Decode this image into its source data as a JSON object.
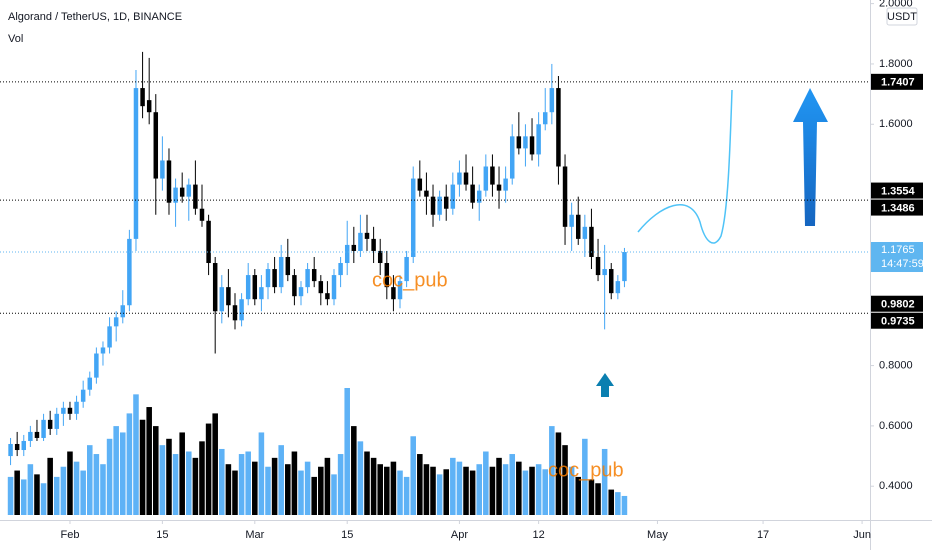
{
  "chart_data": {
    "type": "candlestick",
    "title": "Algorand / TetherUS, 1D, BINANCE",
    "volume_label": "Vol",
    "currency": "USDT",
    "watermark": "coc_pub",
    "open": [
      0.5,
      0.54,
      0.52,
      0.55,
      0.58,
      0.56,
      0.62,
      0.59,
      0.64,
      0.66,
      0.64,
      0.68,
      0.72,
      0.76,
      0.84,
      0.86,
      0.93,
      0.96,
      1.0,
      1.22,
      1.72,
      1.68,
      1.64,
      1.42,
      1.48,
      1.34,
      1.39,
      1.36,
      1.4,
      1.32,
      1.28,
      1.14,
      0.98,
      1.06,
      1.0,
      0.95,
      1.02,
      1.1,
      1.02,
      1.06,
      1.12,
      1.06,
      1.16,
      1.1,
      1.03,
      1.06,
      1.12,
      1.08,
      1.04,
      1.02,
      1.1,
      1.14,
      1.2,
      1.18,
      1.24,
      1.22,
      1.18,
      1.14,
      1.06,
      1.02,
      1.08,
      1.16,
      1.42,
      1.38,
      1.36,
      1.3,
      1.36,
      1.32,
      1.4,
      1.44,
      1.4,
      1.34,
      1.38,
      1.46,
      1.4,
      1.38,
      1.42,
      1.56,
      1.52,
      1.56,
      1.5,
      1.6,
      1.64,
      1.72,
      1.46,
      1.26,
      1.3,
      1.22,
      1.26,
      1.16,
      1.1,
      1.12,
      1.04,
      1.08
    ],
    "high": [
      0.56,
      0.58,
      0.57,
      0.6,
      0.62,
      0.64,
      0.65,
      0.66,
      0.68,
      0.68,
      0.7,
      0.75,
      0.78,
      0.86,
      0.88,
      0.96,
      0.98,
      1.05,
      1.25,
      1.78,
      1.84,
      1.82,
      1.7,
      1.56,
      1.52,
      1.42,
      1.44,
      1.42,
      1.48,
      1.4,
      1.3,
      1.16,
      1.1,
      1.12,
      1.04,
      1.04,
      1.14,
      1.12,
      1.1,
      1.14,
      1.16,
      1.2,
      1.22,
      1.12,
      1.08,
      1.14,
      1.16,
      1.1,
      1.08,
      1.12,
      1.16,
      1.28,
      1.26,
      1.3,
      1.3,
      1.26,
      1.22,
      1.18,
      1.1,
      1.1,
      1.18,
      1.46,
      1.48,
      1.44,
      1.4,
      1.38,
      1.4,
      1.44,
      1.48,
      1.5,
      1.46,
      1.4,
      1.5,
      1.5,
      1.46,
      1.46,
      1.6,
      1.64,
      1.6,
      1.62,
      1.64,
      1.72,
      1.8,
      1.76,
      1.5,
      1.34,
      1.36,
      1.3,
      1.32,
      1.22,
      1.2,
      1.14,
      1.1,
      1.19
    ],
    "low": [
      0.47,
      0.5,
      0.5,
      0.53,
      0.55,
      0.55,
      0.57,
      0.57,
      0.6,
      0.62,
      0.62,
      0.66,
      0.7,
      0.74,
      0.8,
      0.84,
      0.88,
      0.94,
      0.98,
      1.18,
      1.62,
      1.6,
      1.3,
      1.38,
      1.3,
      1.26,
      1.34,
      1.28,
      1.3,
      1.26,
      1.1,
      0.84,
      0.94,
      0.96,
      0.92,
      0.93,
      1.0,
      1.0,
      0.98,
      1.02,
      1.04,
      1.04,
      1.08,
      1.0,
      1.0,
      1.04,
      1.06,
      1.0,
      1.0,
      1.0,
      1.06,
      1.1,
      1.14,
      1.16,
      1.18,
      1.14,
      1.1,
      1.02,
      0.98,
      0.99,
      1.06,
      1.14,
      1.36,
      1.3,
      1.26,
      1.28,
      1.28,
      1.3,
      1.36,
      1.38,
      1.32,
      1.28,
      1.36,
      1.36,
      1.32,
      1.34,
      1.4,
      1.5,
      1.46,
      1.48,
      1.46,
      1.58,
      1.6,
      1.4,
      1.2,
      1.18,
      1.2,
      1.16,
      1.12,
      1.08,
      0.92,
      1.02,
      1.02,
      1.06
    ],
    "close": [
      0.54,
      0.52,
      0.55,
      0.58,
      0.56,
      0.62,
      0.59,
      0.64,
      0.66,
      0.64,
      0.68,
      0.72,
      0.76,
      0.84,
      0.86,
      0.93,
      0.96,
      1.0,
      1.22,
      1.72,
      1.66,
      1.64,
      1.42,
      1.48,
      1.34,
      1.39,
      1.36,
      1.4,
      1.32,
      1.28,
      1.14,
      0.98,
      1.06,
      1.0,
      0.95,
      1.02,
      1.1,
      1.02,
      1.06,
      1.12,
      1.06,
      1.16,
      1.1,
      1.03,
      1.06,
      1.12,
      1.08,
      1.04,
      1.02,
      1.1,
      1.14,
      1.2,
      1.18,
      1.24,
      1.22,
      1.18,
      1.14,
      1.06,
      1.02,
      1.08,
      1.16,
      1.42,
      1.38,
      1.36,
      1.3,
      1.36,
      1.32,
      1.4,
      1.44,
      1.4,
      1.34,
      1.38,
      1.46,
      1.4,
      1.38,
      1.42,
      1.56,
      1.52,
      1.56,
      1.5,
      1.6,
      1.64,
      1.72,
      1.46,
      1.26,
      1.3,
      1.22,
      1.26,
      1.16,
      1.1,
      1.12,
      1.04,
      1.08,
      1.1765
    ],
    "volume": [
      30,
      35,
      28,
      40,
      32,
      25,
      45,
      30,
      38,
      50,
      42,
      35,
      55,
      48,
      40,
      60,
      70,
      65,
      80,
      95,
      75,
      85,
      70,
      55,
      60,
      48,
      65,
      50,
      45,
      58,
      72,
      80,
      52,
      40,
      35,
      48,
      50,
      42,
      65,
      38,
      45,
      55,
      40,
      50,
      35,
      42,
      30,
      38,
      45,
      32,
      48,
      100,
      70,
      58,
      50,
      45,
      40,
      38,
      42,
      35,
      30,
      62,
      48,
      40,
      38,
      32,
      36,
      45,
      42,
      38,
      35,
      40,
      50,
      38,
      45,
      40,
      48,
      42,
      35,
      38,
      40,
      36,
      70,
      65,
      55,
      38,
      30,
      60,
      28,
      25,
      52,
      20,
      18,
      15
    ],
    "up_color": "#42a5f5",
    "down_color": "#000000",
    "xlim": [
      -1.6,
      130.2
    ],
    "xticks": [
      {
        "value": 9,
        "label": "Feb"
      },
      {
        "value": 23,
        "label": "15"
      },
      {
        "value": 37,
        "label": "Mar"
      },
      {
        "value": 51,
        "label": "15"
      },
      {
        "value": 68,
        "label": "Apr"
      },
      {
        "value": 80,
        "label": "12"
      },
      {
        "value": 98,
        "label": "May"
      },
      {
        "value": 114,
        "label": "17"
      },
      {
        "value": 129,
        "label": "Jun"
      }
    ],
    "ylim": [
      0.288,
      2.012
    ],
    "yticks": [
      {
        "value": 2.0,
        "label": "2.0000"
      },
      {
        "value": 1.8,
        "label": "1.8000"
      },
      {
        "value": 1.6,
        "label": "1.6000"
      },
      {
        "value": 0.8,
        "label": "0.8000"
      },
      {
        "value": 0.6,
        "label": "0.6000"
      },
      {
        "value": 0.4,
        "label": "0.4000"
      }
    ],
    "price_levels": [
      {
        "value": 1.7407,
        "line": true
      },
      {
        "value": 1.3554,
        "line": false
      },
      {
        "value": 1.3486,
        "line": true
      },
      {
        "value": 0.9802,
        "line": false
      },
      {
        "value": 0.9735,
        "line": true
      }
    ],
    "last_price": {
      "value": 1.1765,
      "countdown": "14:47:59",
      "color": "#5fb6f0"
    }
  }
}
